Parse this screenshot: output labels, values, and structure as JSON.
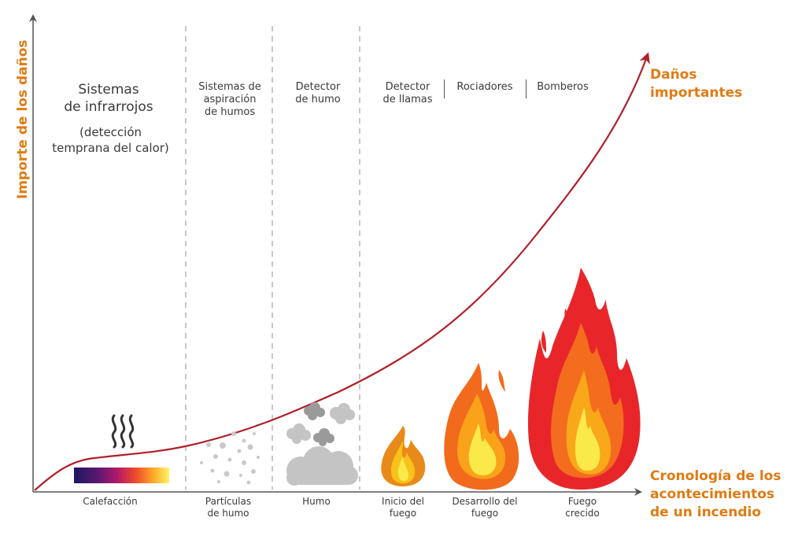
{
  "axes": {
    "y_title": "Importe de los daños",
    "x_title": "Cronología de los\nacontecimientos\nde un incendio"
  },
  "curve_end_label": "Daños\nimportantes",
  "columns": {
    "infrared_title": "Sistemas\nde infrarrojos",
    "infrared_subtitle": "(detección\ntemprana del calor)",
    "aspiration": "Sistemas de\naspiración\nde humos",
    "smoke_detector": "Detector\nde humo",
    "flame_detector": "Detector\nde llamas",
    "sprinklers": "Rociadores",
    "firefighters": "Bomberos"
  },
  "stages": {
    "heating": "Calefacción",
    "particles": "Partículas\nde humo",
    "smoke": "Humo",
    "fire_start": "Inicio del\nfuego",
    "fire_dev": "Desarrollo del\nfuego",
    "fire_grown": "Fuego\ncrecido"
  },
  "colors": {
    "curve": "#b01f2a",
    "accent": "#e07b12",
    "axis": "#555555",
    "divider": "#b5b5b5",
    "smoke": "#c4c4c4",
    "smoke_dark": "#9a9a9a"
  },
  "icons": [
    "heat-waves-icon",
    "smoke-particles-icon",
    "smoke-cloud-icon",
    "small-flame-icon",
    "medium-flame-icon",
    "large-flame-icon"
  ]
}
